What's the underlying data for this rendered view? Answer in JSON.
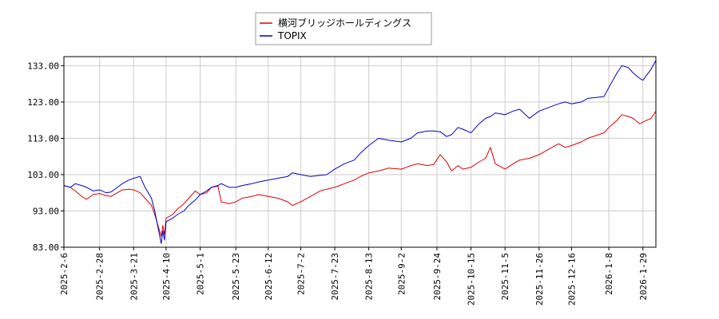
{
  "chart_data": {
    "type": "line",
    "title": "",
    "xlabel": "",
    "ylabel": "",
    "ylim": [
      83.0,
      135.5
    ],
    "yticks": [
      "83.00",
      "93.00",
      "103.00",
      "113.00",
      "123.00",
      "133.00"
    ],
    "grid": true,
    "legend_position": "top-center",
    "x_ticks": [
      "2025-2-6",
      "2025-2-28",
      "2025-3-21",
      "2025-4-10",
      "2025-5-1",
      "2025-5-23",
      "2025-6-12",
      "2025-7-2",
      "2025-7-23",
      "2025-8-13",
      "2025-9-2",
      "2025-9-24",
      "2025-10-15",
      "2025-11-5",
      "2025-11-26",
      "2025-12-16",
      "2026-1-8",
      "2026-1-29"
    ],
    "x_range": [
      "2025-02-06",
      "2026-02-06"
    ],
    "series": [
      {
        "name": "横河ブリッジホールディングス",
        "color": "#dd0000",
        "points": [
          [
            "2025-02-06",
            100.0
          ],
          [
            "2025-02-10",
            99.5
          ],
          [
            "2025-02-13",
            98.5
          ],
          [
            "2025-02-17",
            97.0
          ],
          [
            "2025-02-20",
            96.2
          ],
          [
            "2025-02-24",
            97.5
          ],
          [
            "2025-02-28",
            97.8
          ],
          [
            "2025-03-04",
            97.2
          ],
          [
            "2025-03-07",
            97.0
          ],
          [
            "2025-03-11",
            98.0
          ],
          [
            "2025-03-14",
            98.8
          ],
          [
            "2025-03-18",
            99.0
          ],
          [
            "2025-03-21",
            98.8
          ],
          [
            "2025-03-25",
            98.0
          ],
          [
            "2025-03-28",
            96.5
          ],
          [
            "2025-04-01",
            94.5
          ],
          [
            "2025-04-03",
            92.0
          ],
          [
            "2025-04-07",
            86.0
          ],
          [
            "2025-04-08",
            89.0
          ],
          [
            "2025-04-09",
            86.5
          ],
          [
            "2025-04-10",
            91.0
          ],
          [
            "2025-04-14",
            92.0
          ],
          [
            "2025-04-17",
            93.5
          ],
          [
            "2025-04-21",
            95.0
          ],
          [
            "2025-04-24",
            96.5
          ],
          [
            "2025-04-28",
            98.5
          ],
          [
            "2025-05-01",
            97.5
          ],
          [
            "2025-05-05",
            98.0
          ],
          [
            "2025-05-08",
            99.5
          ],
          [
            "2025-05-12",
            99.8
          ],
          [
            "2025-05-14",
            95.5
          ],
          [
            "2025-05-19",
            95.0
          ],
          [
            "2025-05-23",
            95.5
          ],
          [
            "2025-05-27",
            96.5
          ],
          [
            "2025-06-02",
            97.0
          ],
          [
            "2025-06-06",
            97.5
          ],
          [
            "2025-06-12",
            97.0
          ],
          [
            "2025-06-18",
            96.5
          ],
          [
            "2025-06-24",
            95.5
          ],
          [
            "2025-06-27",
            94.5
          ],
          [
            "2025-07-02",
            95.5
          ],
          [
            "2025-07-08",
            97.0
          ],
          [
            "2025-07-14",
            98.5
          ],
          [
            "2025-07-18",
            99.0
          ],
          [
            "2025-07-23",
            99.5
          ],
          [
            "2025-07-29",
            100.5
          ],
          [
            "2025-08-04",
            101.5
          ],
          [
            "2025-08-08",
            102.5
          ],
          [
            "2025-08-13",
            103.5
          ],
          [
            "2025-08-19",
            104.0
          ],
          [
            "2025-08-25",
            104.8
          ],
          [
            "2025-09-02",
            104.5
          ],
          [
            "2025-09-08",
            105.5
          ],
          [
            "2025-09-12",
            106.0
          ],
          [
            "2025-09-18",
            105.5
          ],
          [
            "2025-09-22",
            105.8
          ],
          [
            "2025-09-26",
            108.5
          ],
          [
            "2025-09-30",
            106.5
          ],
          [
            "2025-10-03",
            104.0
          ],
          [
            "2025-10-07",
            105.5
          ],
          [
            "2025-10-10",
            104.5
          ],
          [
            "2025-10-15",
            105.0
          ],
          [
            "2025-10-20",
            106.5
          ],
          [
            "2025-10-24",
            107.5
          ],
          [
            "2025-10-27",
            110.5
          ],
          [
            "2025-10-30",
            106.0
          ],
          [
            "2025-11-05",
            104.5
          ],
          [
            "2025-11-10",
            106.0
          ],
          [
            "2025-11-14",
            107.0
          ],
          [
            "2025-11-20",
            107.5
          ],
          [
            "2025-11-26",
            108.5
          ],
          [
            "2025-12-02",
            110.0
          ],
          [
            "2025-12-08",
            111.5
          ],
          [
            "2025-12-12",
            110.5
          ],
          [
            "2025-12-16",
            111.0
          ],
          [
            "2025-12-22",
            112.0
          ],
          [
            "2025-12-26",
            113.0
          ],
          [
            "2026-01-05",
            114.5
          ],
          [
            "2026-01-08",
            116.0
          ],
          [
            "2026-01-13",
            118.0
          ],
          [
            "2026-01-16",
            119.5
          ],
          [
            "2026-01-20",
            119.0
          ],
          [
            "2026-01-23",
            118.5
          ],
          [
            "2026-01-27",
            117.0
          ],
          [
            "2026-01-29",
            117.5
          ],
          [
            "2026-02-03",
            118.5
          ],
          [
            "2026-02-06",
            120.5
          ]
        ]
      },
      {
        "name": "TOPIX",
        "color": "#0000cc",
        "points": [
          [
            "2025-02-06",
            100.0
          ],
          [
            "2025-02-10",
            99.5
          ],
          [
            "2025-02-13",
            100.5
          ],
          [
            "2025-02-17",
            100.0
          ],
          [
            "2025-02-20",
            99.5
          ],
          [
            "2025-02-24",
            98.5
          ],
          [
            "2025-02-28",
            98.8
          ],
          [
            "2025-03-04",
            98.0
          ],
          [
            "2025-03-07",
            98.2
          ],
          [
            "2025-03-11",
            99.5
          ],
          [
            "2025-03-14",
            100.5
          ],
          [
            "2025-03-18",
            101.5
          ],
          [
            "2025-03-21",
            102.0
          ],
          [
            "2025-03-25",
            102.5
          ],
          [
            "2025-03-28",
            99.5
          ],
          [
            "2025-04-01",
            96.5
          ],
          [
            "2025-04-03",
            93.0
          ],
          [
            "2025-04-07",
            84.0
          ],
          [
            "2025-04-08",
            87.5
          ],
          [
            "2025-04-09",
            85.0
          ],
          [
            "2025-04-10",
            90.0
          ],
          [
            "2025-04-14",
            91.0
          ],
          [
            "2025-04-17",
            92.0
          ],
          [
            "2025-04-21",
            93.0
          ],
          [
            "2025-04-24",
            94.5
          ],
          [
            "2025-04-28",
            96.0
          ],
          [
            "2025-05-01",
            97.5
          ],
          [
            "2025-05-05",
            98.5
          ],
          [
            "2025-05-08",
            99.5
          ],
          [
            "2025-05-12",
            100.0
          ],
          [
            "2025-05-14",
            100.5
          ],
          [
            "2025-05-19",
            99.5
          ],
          [
            "2025-05-23",
            99.5
          ],
          [
            "2025-05-27",
            100.0
          ],
          [
            "2025-06-02",
            100.5
          ],
          [
            "2025-06-06",
            101.0
          ],
          [
            "2025-06-12",
            101.5
          ],
          [
            "2025-06-18",
            102.0
          ],
          [
            "2025-06-24",
            102.5
          ],
          [
            "2025-06-27",
            103.5
          ],
          [
            "2025-07-02",
            103.0
          ],
          [
            "2025-07-08",
            102.5
          ],
          [
            "2025-07-14",
            102.8
          ],
          [
            "2025-07-18",
            103.0
          ],
          [
            "2025-07-23",
            104.5
          ],
          [
            "2025-07-29",
            106.0
          ],
          [
            "2025-08-04",
            107.0
          ],
          [
            "2025-08-08",
            109.0
          ],
          [
            "2025-08-13",
            111.0
          ],
          [
            "2025-08-19",
            113.0
          ],
          [
            "2025-08-25",
            112.5
          ],
          [
            "2025-09-02",
            112.0
          ],
          [
            "2025-09-08",
            113.0
          ],
          [
            "2025-09-12",
            114.5
          ],
          [
            "2025-09-18",
            115.0
          ],
          [
            "2025-09-22",
            115.0
          ],
          [
            "2025-09-26",
            114.8
          ],
          [
            "2025-09-30",
            113.5
          ],
          [
            "2025-10-03",
            114.0
          ],
          [
            "2025-10-07",
            116.0
          ],
          [
            "2025-10-10",
            115.5
          ],
          [
            "2025-10-15",
            114.5
          ],
          [
            "2025-10-20",
            117.0
          ],
          [
            "2025-10-24",
            118.5
          ],
          [
            "2025-10-27",
            119.0
          ],
          [
            "2025-10-30",
            120.0
          ],
          [
            "2025-11-05",
            119.5
          ],
          [
            "2025-11-10",
            120.5
          ],
          [
            "2025-11-14",
            121.0
          ],
          [
            "2025-11-20",
            118.5
          ],
          [
            "2025-11-26",
            120.5
          ],
          [
            "2025-12-02",
            121.5
          ],
          [
            "2025-12-08",
            122.5
          ],
          [
            "2025-12-12",
            123.0
          ],
          [
            "2025-12-16",
            122.5
          ],
          [
            "2025-12-22",
            123.0
          ],
          [
            "2025-12-26",
            124.0
          ],
          [
            "2026-01-05",
            124.5
          ],
          [
            "2026-01-08",
            127.0
          ],
          [
            "2026-01-13",
            131.0
          ],
          [
            "2026-01-16",
            133.0
          ],
          [
            "2026-01-20",
            132.5
          ],
          [
            "2026-01-23",
            131.0
          ],
          [
            "2026-01-27",
            129.5
          ],
          [
            "2026-01-29",
            129.0
          ],
          [
            "2026-02-03",
            132.0
          ],
          [
            "2026-02-06",
            134.5
          ]
        ]
      }
    ]
  }
}
